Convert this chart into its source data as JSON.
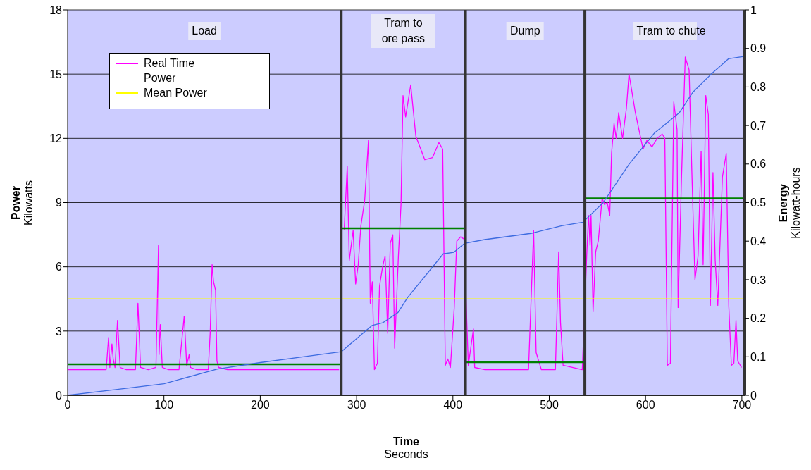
{
  "chart_data": {
    "type": "line",
    "xlabel": "Time\nSeconds",
    "ylabel": "Power\nKilowatts",
    "y2label": "Energy\nKilowatt-hours",
    "xlim": [
      0,
      703
    ],
    "xticks": [
      0,
      100,
      200,
      300,
      400,
      500,
      600,
      700
    ],
    "ylim": [
      0,
      18
    ],
    "yticks": [
      0,
      3,
      6,
      9,
      12,
      15,
      18
    ],
    "y2lim": [
      0,
      1
    ],
    "y2ticks": [
      0,
      0.1,
      0.2,
      0.3,
      0.4,
      0.5,
      0.6,
      0.7,
      0.8,
      0.9,
      1
    ],
    "grid": "y",
    "legend": "top left",
    "marker": "none",
    "line_style": "solid",
    "series": [
      {
        "name": "Real Time Power",
        "color": "#ff00ff",
        "x": [
          0,
          20,
          40,
          42.5,
          43.8,
          46,
          47.3,
          49.2,
          51.8,
          54.5,
          61,
          70.4,
          73,
          75.7,
          83.7,
          91.7,
          94.3,
          94.9,
          96.2,
          98.3,
          105,
          115.6,
          121,
          123.6,
          126.2,
          127.6,
          134,
          146,
          148,
          150,
          151.5,
          153.6,
          155,
          156.8,
          166,
          200,
          240,
          281.8,
          284.4,
          287.1,
          290.3,
          292.4,
          296.4,
          299,
          301.7,
          304.4,
          308.4,
          312.3,
          314.2,
          316.3,
          318.5,
          321.6,
          323.8,
          327,
          329.6,
          332.3,
          335,
          337.6,
          339.5,
          343.4,
          346.1,
          348.2,
          350.9,
          356.2,
          361.5,
          370.8,
          378.8,
          385.4,
          389.4,
          392.1,
          394.7,
          397.4,
          401.4,
          404,
          408,
          411.5,
          416,
          421.3,
          422.6,
          433.3,
          460,
          478.5,
          483.8,
          486.4,
          491.8,
          506.4,
          509.8,
          511.7,
          514.4,
          534.3,
          538.9,
          540.8,
          542.4,
          543.4,
          545.5,
          548.2,
          550.9,
          554.9,
          557.5,
          560.2,
          562.8,
          564.7,
          567.3,
          569.5,
          572.1,
          576.1,
          580.1,
          582.8,
          585.4,
          589.4,
          597.4,
          601.4,
          606.7,
          612,
          617.3,
          620,
          622.6,
          625.8,
          629.3,
          632.7,
          633.8,
          637.3,
          641.2,
          645.2,
          647.9,
          651.3,
          654.5,
          657.7,
          659.8,
          662.5,
          665.2,
          667.3,
          670,
          672.3,
          675,
          679.8,
          683.8,
          686.4,
          689.1,
          691.7,
          693.9,
          695.7,
          699.7
        ],
        "values": [
          1.2,
          1.2,
          1.2,
          2.7,
          1.3,
          2.4,
          1.7,
          1.3,
          3.5,
          1.3,
          1.2,
          1.2,
          4.3,
          1.3,
          1.2,
          1.3,
          7.0,
          1.9,
          3.3,
          1.3,
          1.2,
          1.2,
          3.7,
          1.4,
          1.9,
          1.3,
          1.2,
          1.2,
          2.9,
          6.1,
          5.3,
          4.9,
          1.6,
          1.3,
          1.2,
          1.2,
          1.2,
          1.2,
          null,
          7.7,
          10.7,
          6.3,
          7.7,
          5.2,
          6.1,
          7.9,
          9.1,
          11.9,
          4.3,
          5.3,
          1.2,
          1.5,
          5.1,
          6.0,
          6.5,
          2.9,
          7.1,
          7.5,
          2.2,
          6.5,
          8.9,
          14.0,
          13.0,
          14.5,
          12.1,
          11.0,
          11.1,
          11.8,
          11.5,
          1.4,
          1.7,
          1.3,
          4.1,
          7.2,
          7.4,
          7.3,
          1.4,
          3.1,
          1.3,
          1.2,
          1.2,
          1.2,
          7.7,
          2.0,
          1.2,
          1.2,
          6.7,
          3.4,
          1.4,
          1.2,
          6.5,
          8.4,
          7.0,
          8.4,
          3.9,
          6.7,
          7.2,
          9.2,
          8.9,
          9.0,
          8.4,
          11.3,
          12.7,
          12.0,
          13.2,
          12.0,
          13.4,
          15.0,
          14.3,
          13.2,
          11.5,
          11.9,
          11.6,
          12.0,
          12.2,
          12.0,
          1.4,
          1.5,
          13.7,
          12.4,
          4.1,
          10.1,
          15.8,
          15.2,
          10.7,
          5.4,
          6.5,
          11.4,
          6.1,
          14.0,
          13.1,
          4.2,
          10.4,
          6.3,
          4.2,
          10.2,
          11.3,
          4.2,
          1.4,
          1.5,
          3.5,
          1.6,
          1.3
        ]
      },
      {
        "name": "Mean Power",
        "color": "#ffff00",
        "x": [
          0,
          703
        ],
        "values": [
          4.5,
          4.5
        ]
      },
      {
        "color": "#008000",
        "x": [
          0,
          284,
          284,
          413,
          413,
          537,
          537,
          703
        ],
        "values": [
          1.45,
          1.45,
          7.8,
          7.8,
          1.55,
          1.55,
          9.2,
          9.2
        ]
      },
      {
        "color": "#3d6be0",
        "axis": "y2",
        "x": [
          0,
          50,
          100,
          155,
          200,
          284,
          316,
          327,
          343,
          353,
          390,
          401,
          412,
          433,
          481,
          513,
          535,
          556,
          583,
          609,
          622,
          635,
          649,
          668,
          686,
          702
        ],
        "values": [
          0,
          0.015,
          0.03,
          0.068,
          0.085,
          0.113,
          0.181,
          0.188,
          0.215,
          0.254,
          0.367,
          0.371,
          0.394,
          0.404,
          0.42,
          0.44,
          0.449,
          0.5,
          0.6,
          0.68,
          0.706,
          0.733,
          0.786,
          0.833,
          0.873,
          0.879
        ]
      }
    ],
    "ref_lines": [
      {
        "axis": "x",
        "value": 284,
        "color": "#333333"
      },
      {
        "axis": "x",
        "value": 413,
        "color": "#333333"
      },
      {
        "axis": "x",
        "value": 537,
        "color": "#333333"
      }
    ],
    "annotations": [
      "Load",
      "Tram to ore pass",
      "Dump",
      "Tram to chute"
    ]
  }
}
